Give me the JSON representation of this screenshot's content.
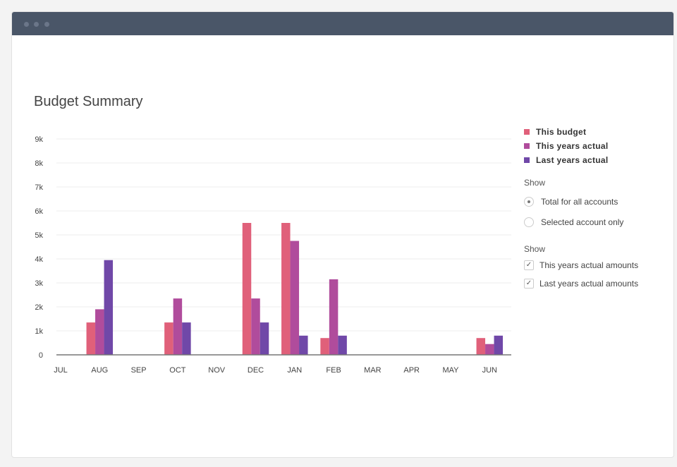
{
  "title": "Budget Summary",
  "legend": [
    {
      "label": "This budget",
      "color": "#e0607a"
    },
    {
      "label": "This years actual",
      "color": "#b04c9c"
    },
    {
      "label": "Last years actual",
      "color": "#7048a8"
    }
  ],
  "show1": {
    "label": "Show",
    "options": [
      {
        "label": "Total for all accounts",
        "selected": true
      },
      {
        "label": "Selected account only",
        "selected": false
      }
    ]
  },
  "show2": {
    "label": "Show",
    "options": [
      {
        "label": "This years actual amounts",
        "checked": true
      },
      {
        "label": "Last years actual amounts",
        "checked": true
      }
    ]
  },
  "chart_data": {
    "type": "bar",
    "title": "Budget Summary",
    "categories": [
      "JUL",
      "AUG",
      "SEP",
      "OCT",
      "NOV",
      "DEC",
      "JAN",
      "FEB",
      "MAR",
      "APR",
      "MAY",
      "JUN"
    ],
    "series": [
      {
        "name": "This budget",
        "color": "#e0607a",
        "values": [
          0,
          1350,
          0,
          1350,
          0,
          5500,
          5500,
          700,
          0,
          0,
          0,
          700
        ]
      },
      {
        "name": "This years actual",
        "color": "#b04c9c",
        "values": [
          0,
          1900,
          0,
          2350,
          0,
          2350,
          4750,
          3150,
          0,
          0,
          0,
          450
        ]
      },
      {
        "name": "Last years actual",
        "color": "#7048a8",
        "values": [
          0,
          3950,
          0,
          1350,
          0,
          1350,
          800,
          800,
          0,
          0,
          0,
          800
        ]
      }
    ],
    "yticks": [
      "0",
      "1k",
      "2k",
      "3k",
      "4k",
      "5k",
      "6k",
      "7k",
      "8k",
      "9k"
    ],
    "ylim": [
      0,
      9000
    ],
    "grid": true,
    "legend_position": "right"
  }
}
